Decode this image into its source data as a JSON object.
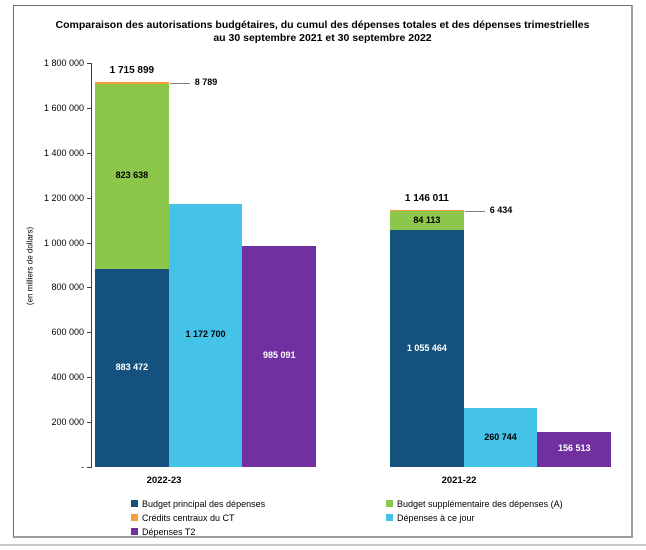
{
  "chart": {
    "title_line1": "Comparaison des autorisations budgétaires, du cumul des dépenses totales et des dépenses trimestrielles",
    "title_line2": "au 30 septembre 2021 et 30 septembre 2022",
    "y_axis_title": "(en milliers de dollars)"
  },
  "chart_data": {
    "type": "bar",
    "title": "Comparaison des autorisations budgétaires, du cumul des dépenses totales et des dépenses trimestrielles au 30 septembre 2021 et 30 septembre 2022",
    "ylabel": "(en milliers de dollars)",
    "ylim": [
      0,
      1800000
    ],
    "ytick_step": 200000,
    "ytick_labels": [
      "1 800 000",
      "1 600 000",
      "1 400 000",
      "1 200 000",
      "1 000 000",
      "800 000",
      "600 000",
      "400 000",
      "200 000",
      "-"
    ],
    "grid": false,
    "categories": [
      "2022-23",
      "2021-22"
    ],
    "series_colors": {
      "Budget principal des dépenses": "#15517E",
      "Budget supplémentaire des dépenses (A)": "#8CC64A",
      "Crédits centraux du CT": "#F79E38",
      "Dépenses à ce jour": "#45C2E8",
      "Dépenses T2": "#7030A0"
    },
    "groups": [
      {
        "category": "2022-23",
        "stacked_bar": {
          "total": 1715899,
          "total_label": "1 715 899",
          "segments": [
            {
              "series": "Budget principal des dépenses",
              "value": 883472,
              "label": "883 472",
              "label_style": "inside-white"
            },
            {
              "series": "Budget supplémentaire des dépenses (A)",
              "value": 823638,
              "label": "823 638",
              "label_style": "inside-black"
            },
            {
              "series": "Crédits centraux du CT",
              "value": 8789,
              "label": "8 789",
              "label_style": "callout"
            }
          ]
        },
        "bars": [
          {
            "series": "Dépenses à ce jour",
            "value": 1172700,
            "label": "1 172 700",
            "label_style": "inside-black"
          },
          {
            "series": "Dépenses T2",
            "value": 985091,
            "label": "985 091",
            "label_style": "inside-white"
          }
        ]
      },
      {
        "category": "2021-22",
        "stacked_bar": {
          "total": 1146011,
          "total_label": "1 146 011",
          "segments": [
            {
              "series": "Budget principal des dépenses",
              "value": 1055464,
              "label": "1 055 464",
              "label_style": "inside-white"
            },
            {
              "series": "Budget supplémentaire des dépenses (A)",
              "value": 84113,
              "label": "84 113",
              "label_style": "inside-black"
            },
            {
              "series": "Crédits centraux du CT",
              "value": 6434,
              "label": "6 434",
              "label_style": "callout"
            }
          ]
        },
        "bars": [
          {
            "series": "Dépenses à ce jour",
            "value": 260744,
            "label": "260 744",
            "label_style": "inside-black"
          },
          {
            "series": "Dépenses T2",
            "value": 156513,
            "label": "156 513",
            "label_style": "inside-white"
          }
        ]
      }
    ],
    "legend": {
      "position": "bottom",
      "column1": [
        {
          "label": "Budget principal des dépenses",
          "series": "Budget principal des dépenses"
        },
        {
          "label": "Crédits centraux du CT",
          "series": "Crédits centraux du CT"
        },
        {
          "label": "Dépenses T2",
          "series": "Dépenses T2"
        }
      ],
      "column2": [
        {
          "label": "Budget supplémentaire des dépenses (A)",
          "series": "Budget supplémentaire des dépenses (A)"
        },
        {
          "label": "Dépenses à ce jour",
          "series": "Dépenses à ce jour"
        }
      ]
    }
  }
}
